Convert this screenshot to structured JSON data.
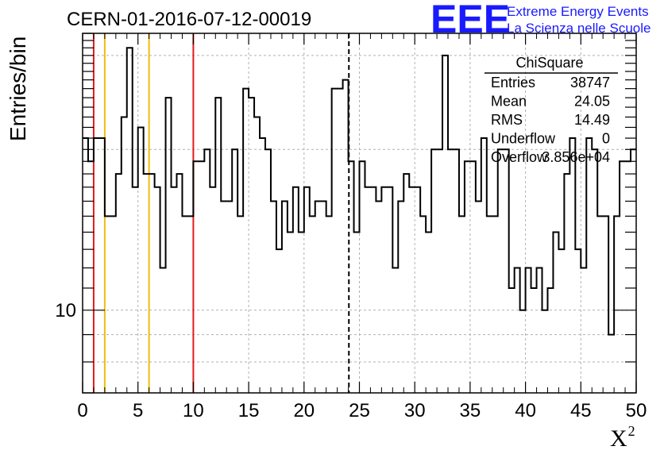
{
  "chart_data": {
    "type": "histogram",
    "title": "CERN-01-2016-07-12-00019",
    "xlabel": "X",
    "xlabel_superscript": "2",
    "ylabel": "Entries/bin",
    "xlim": [
      0,
      50
    ],
    "ylim": [
      7,
      33
    ],
    "yscale": "log",
    "xticks": [
      0,
      5,
      10,
      15,
      20,
      25,
      30,
      35,
      40,
      45,
      50
    ],
    "yticks": [
      10
    ],
    "grid": true,
    "bin_width": 0.5,
    "bin_start": 0,
    "values": [
      21,
      19,
      21,
      21,
      15,
      15,
      18,
      23,
      31,
      17,
      22,
      18,
      18,
      17,
      12,
      25,
      17,
      18,
      15,
      15,
      19,
      19,
      20,
      17,
      25,
      16,
      16,
      20,
      15,
      26,
      25,
      23,
      21,
      20,
      16,
      13,
      16,
      14,
      17,
      14,
      17,
      15,
      16,
      16,
      15,
      26,
      26,
      27,
      19,
      14,
      19,
      17,
      17,
      16,
      17,
      17,
      12,
      16,
      18,
      17,
      17,
      15,
      14,
      20,
      20,
      30,
      20,
      20,
      15,
      19,
      19,
      16,
      21,
      15,
      15,
      20,
      20,
      11,
      12,
      10,
      12,
      11,
      12,
      10,
      11,
      14,
      13,
      18,
      21,
      13,
      12,
      21,
      20,
      15,
      15,
      9,
      15,
      19,
      19,
      20
    ],
    "vlines": [
      {
        "x": 1,
        "color": "#e31b1b",
        "style": "solid"
      },
      {
        "x": 2,
        "color": "#f0bc10",
        "style": "solid"
      },
      {
        "x": 6,
        "color": "#f0bc10",
        "style": "solid"
      },
      {
        "x": 10,
        "color": "#e31b1b",
        "style": "solid"
      },
      {
        "x": 24.05,
        "color": "#000000",
        "style": "dashed"
      }
    ],
    "stats": {
      "name": "ChiSquare",
      "rows": [
        {
          "label": "Entries",
          "value": "38747"
        },
        {
          "label": "Mean",
          "value": "24.05"
        },
        {
          "label": "RMS",
          "value": "14.49"
        },
        {
          "label": "Underflow",
          "value": "0"
        },
        {
          "label": "Overflow",
          "value": "3.856e+04"
        }
      ]
    },
    "colors": {
      "histogram": "#000000",
      "grid": "#b0b0b0",
      "logo": "#1a1aff"
    }
  },
  "logo": {
    "mark": "EEE",
    "line1": "Extreme Energy Events",
    "line2": "La Scienza nelle Scuole"
  }
}
